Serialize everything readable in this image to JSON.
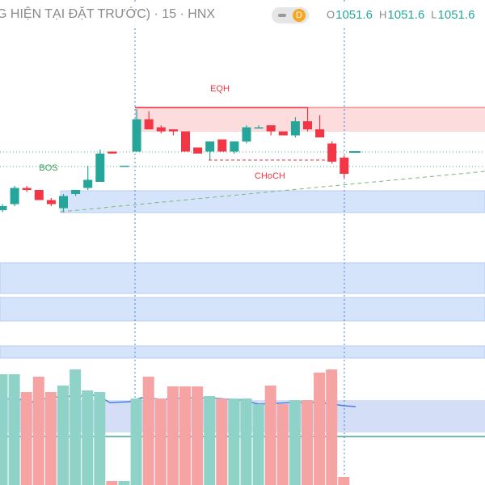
{
  "chart_data": {
    "type": "candlestick",
    "title": "G HIỆN TẠI ĐẶT TRƯỚC) · 15 · HNX",
    "badge": "D",
    "ohlc_labels": [
      {
        "letter": "O",
        "value": 1051.6
      },
      {
        "letter": "H",
        "value": 1051.6
      },
      {
        "letter": "L",
        "value": 1051.6
      }
    ],
    "annotations": [
      "EQH",
      "BOS",
      "CHoCH"
    ],
    "up_color": "#26a69a",
    "down_color": "#f23645",
    "volume_up_color": "#8fd3c8",
    "volume_down_color": "#f5a3a3",
    "ylim": [
      1042,
      1060
    ],
    "volume_lim": [
      0,
      150
    ],
    "open": [
      1049.6,
      1049.9,
      1050.7,
      1050.6,
      1050.1,
      1049.7,
      1050.4,
      1050.7,
      1051.0,
      1052.5,
      1051.8,
      1052.5,
      1054.1,
      1053.7,
      1053.6,
      1053.5,
      1052.7,
      1052.5,
      1053.1,
      1052.5,
      1053.0,
      1053.7,
      1053.8,
      1053.5,
      1053.3,
      1054.0,
      1053.6,
      1052.9,
      1052.2
    ],
    "high": [
      1049.9,
      1050.8,
      1050.8,
      1050.6,
      1050.2,
      1050.4,
      1050.6,
      1051.8,
      1052.6,
      1052.5,
      1051.8,
      1054.6,
      1054.5,
      1053.8,
      1053.6,
      1053.5,
      1052.7,
      1053.0,
      1053.1,
      1053.0,
      1053.8,
      1053.8,
      1053.8,
      1053.5,
      1054.2,
      1054.7,
      1054.3,
      1053.0,
      1052.3
    ],
    "low": [
      1049.5,
      1049.8,
      1050.5,
      1050.1,
      1049.8,
      1049.5,
      1050.3,
      1050.6,
      1051.0,
      1052.4,
      1051.8,
      1052.5,
      1053.6,
      1053.4,
      1053.3,
      1052.5,
      1052.4,
      1052.1,
      1052.5,
      1052.4,
      1052.9,
      1053.7,
      1053.3,
      1053.3,
      1053.2,
      1053.5,
      1053.2,
      1051.9,
      1051.2
    ],
    "close": [
      1049.8,
      1050.7,
      1050.6,
      1050.1,
      1049.9,
      1050.3,
      1050.6,
      1051.1,
      1052.4,
      1052.4,
      1051.8,
      1054.1,
      1053.6,
      1053.5,
      1053.5,
      1052.5,
      1052.4,
      1053.0,
      1052.5,
      1053.0,
      1053.7,
      1053.7,
      1053.5,
      1053.3,
      1054.0,
      1053.6,
      1053.2,
      1052.0,
      1051.4
    ],
    "volume": [
      137,
      137,
      115,
      134,
      115,
      123,
      143,
      117,
      115,
      5,
      5,
      107,
      134,
      107,
      122,
      122,
      122,
      110,
      107,
      107,
      107,
      100,
      123,
      100,
      105,
      105,
      139,
      143,
      10
    ]
  }
}
